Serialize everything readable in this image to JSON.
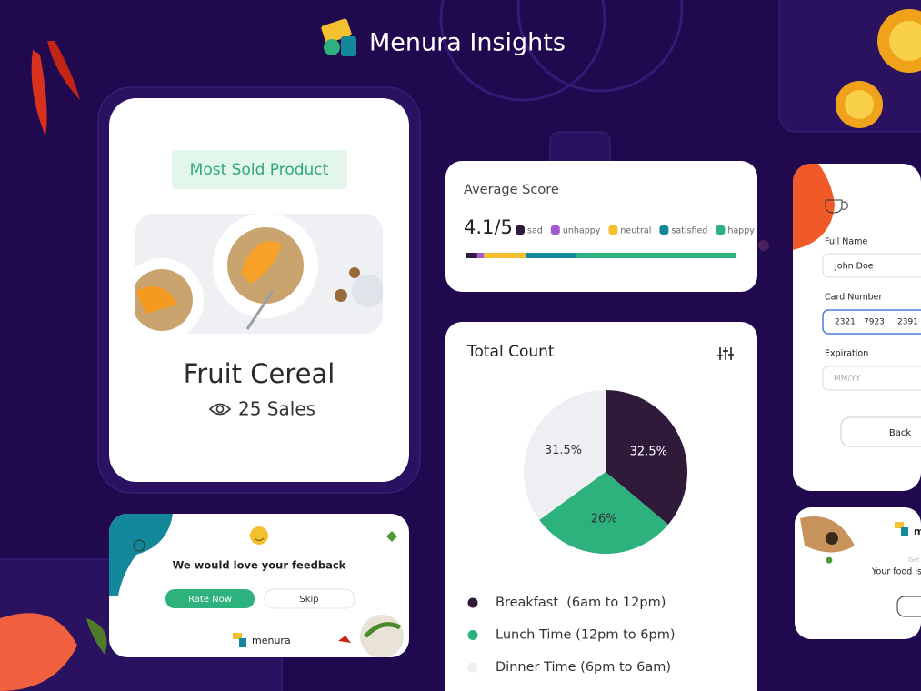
{
  "header": {
    "title": "Menura Insights"
  },
  "product_card": {
    "badge": "Most Sold Product",
    "name": "Fruit Cereal",
    "sales": "25 Sales"
  },
  "feedback_card": {
    "message": "We would love your feedback",
    "primary_button": "Rate Now",
    "secondary_button": "Skip",
    "brand": "menura"
  },
  "average_score": {
    "title": "Average Score",
    "score": "4.1/5",
    "legend": [
      {
        "name": "sad",
        "color": "#2e1a3d",
        "value": 4
      },
      {
        "name": "unhappy",
        "color": "#a45bd1",
        "value": 2.5
      },
      {
        "name": "neutral",
        "color": "#f5c02e",
        "value": 15.5
      },
      {
        "name": "satisfied",
        "color": "#13889a",
        "value": 19
      },
      {
        "name": "happy",
        "color": "#2db27d",
        "value": 59
      }
    ]
  },
  "total_count": {
    "title": "Total Count",
    "segments": [
      {
        "name": "Breakfast  (6am to 12pm)",
        "value": 32.5,
        "label": "32.5%",
        "color": "#2f1a3a"
      },
      {
        "name": "Lunch Time (12pm to 6pm)",
        "value": 26,
        "label": "26%",
        "color": "#2db27d"
      },
      {
        "name": "Dinner Time (6pm to 6am)",
        "value": 31.5,
        "label": "31.5%",
        "color": "#eeeef3"
      }
    ]
  },
  "payment_form": {
    "full_name_label": "Full Name",
    "full_name_value": "John Doe",
    "card_number_label": "Card Number",
    "card_number_groups": [
      "2321",
      "7923",
      "2391"
    ],
    "expiration_label": "Expiration",
    "expiration_placeholder": "MM/YY",
    "back_button": "Back"
  },
  "promo_card": {
    "brand": "m",
    "line1": "Get",
    "line2": "Your food is"
  }
}
